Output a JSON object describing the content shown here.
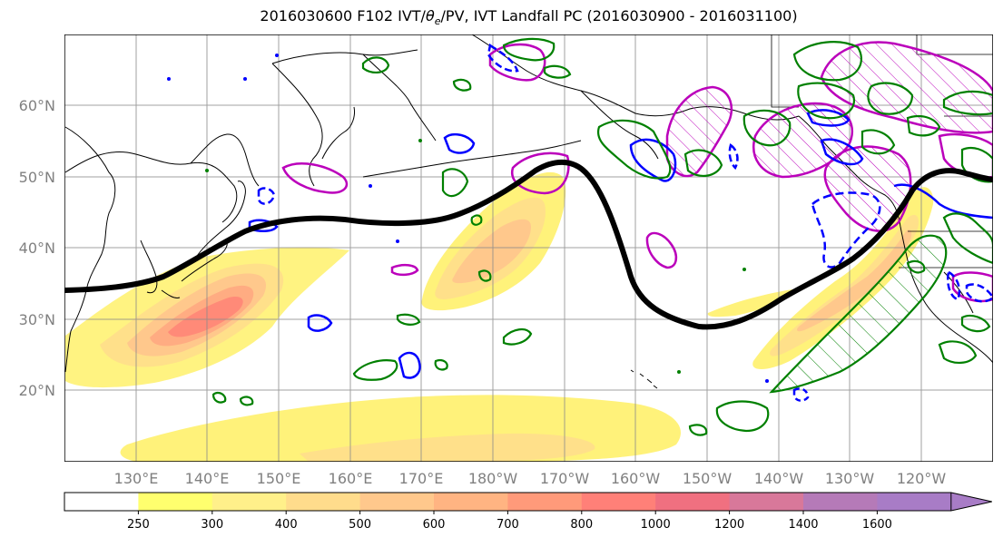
{
  "title": {
    "prefix": "2016030600 F102 IVT/",
    "theta": "θ",
    "theta_sub": "e",
    "suffix": "/PV, IVT Landfall PC (2016030900 - 2016031100)"
  },
  "lat_labels": [
    "60°N",
    "50°N",
    "40°N",
    "30°N",
    "20°N"
  ],
  "lon_labels": [
    "130°E",
    "140°E",
    "150°E",
    "160°E",
    "170°E",
    "180°W",
    "170°W",
    "160°W",
    "150°W",
    "140°W",
    "130°W",
    "120°W"
  ],
  "colorbar": {
    "ticks": [
      "250",
      "300",
      "400",
      "500",
      "600",
      "700",
      "800",
      "1000",
      "1200",
      "1400",
      "1600"
    ],
    "colors": [
      "#ffffff",
      "#ffff6e",
      "#fff08a",
      "#ffdc8c",
      "#ffc88c",
      "#ffb482",
      "#ff9a7a",
      "#ff8078",
      "#f07080",
      "#d8789a",
      "#b57ab8",
      "#a87cc6"
    ]
  },
  "colors": {
    "jet_axis": "#000000",
    "pv_contour": "#008000",
    "theta_e_contour": "#0000ff",
    "landfall_pc": "#bb00bb",
    "ivt_low": "#fff27a",
    "ivt_high": "#ff8a78"
  },
  "legend_note": ""
}
